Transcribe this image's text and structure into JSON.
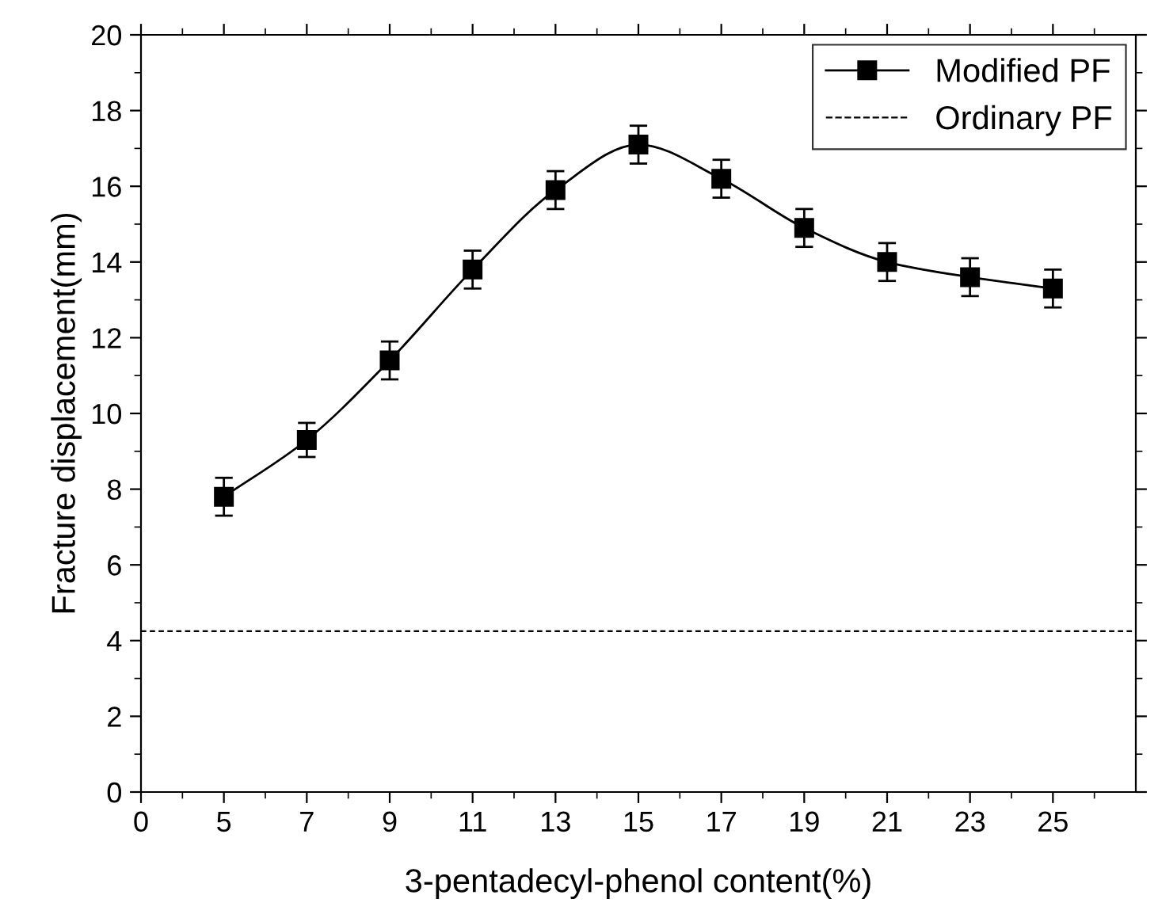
{
  "chart_data": {
    "type": "line",
    "xlabel": "3-pentadecyl-phenol content(%)",
    "ylabel": "Fracture displacement(mm)",
    "categories": [
      "0",
      "5",
      "7",
      "9",
      "11",
      "13",
      "15",
      "17",
      "19",
      "21",
      "23",
      "25"
    ],
    "series": [
      {
        "name": "Modified PF",
        "color": "#000000",
        "values": [
          null,
          7.8,
          9.3,
          11.4,
          13.8,
          15.9,
          17.1,
          16.2,
          14.9,
          14.0,
          13.6,
          13.3
        ],
        "errors": [
          null,
          0.5,
          0.45,
          0.5,
          0.5,
          0.5,
          0.5,
          0.5,
          0.5,
          0.5,
          0.5,
          0.5
        ]
      }
    ],
    "ref_lines": [
      {
        "axis": "y",
        "value": 4.25,
        "label": "Ordinary PF",
        "color": "#000000",
        "line_style": "dashed"
      }
    ],
    "ylim": [
      0,
      20
    ],
    "yticks": [
      0,
      2,
      4,
      6,
      8,
      10,
      12,
      14,
      16,
      18,
      20
    ],
    "marker": "square",
    "line_style": "solid",
    "grid": false,
    "legend": "top right"
  }
}
